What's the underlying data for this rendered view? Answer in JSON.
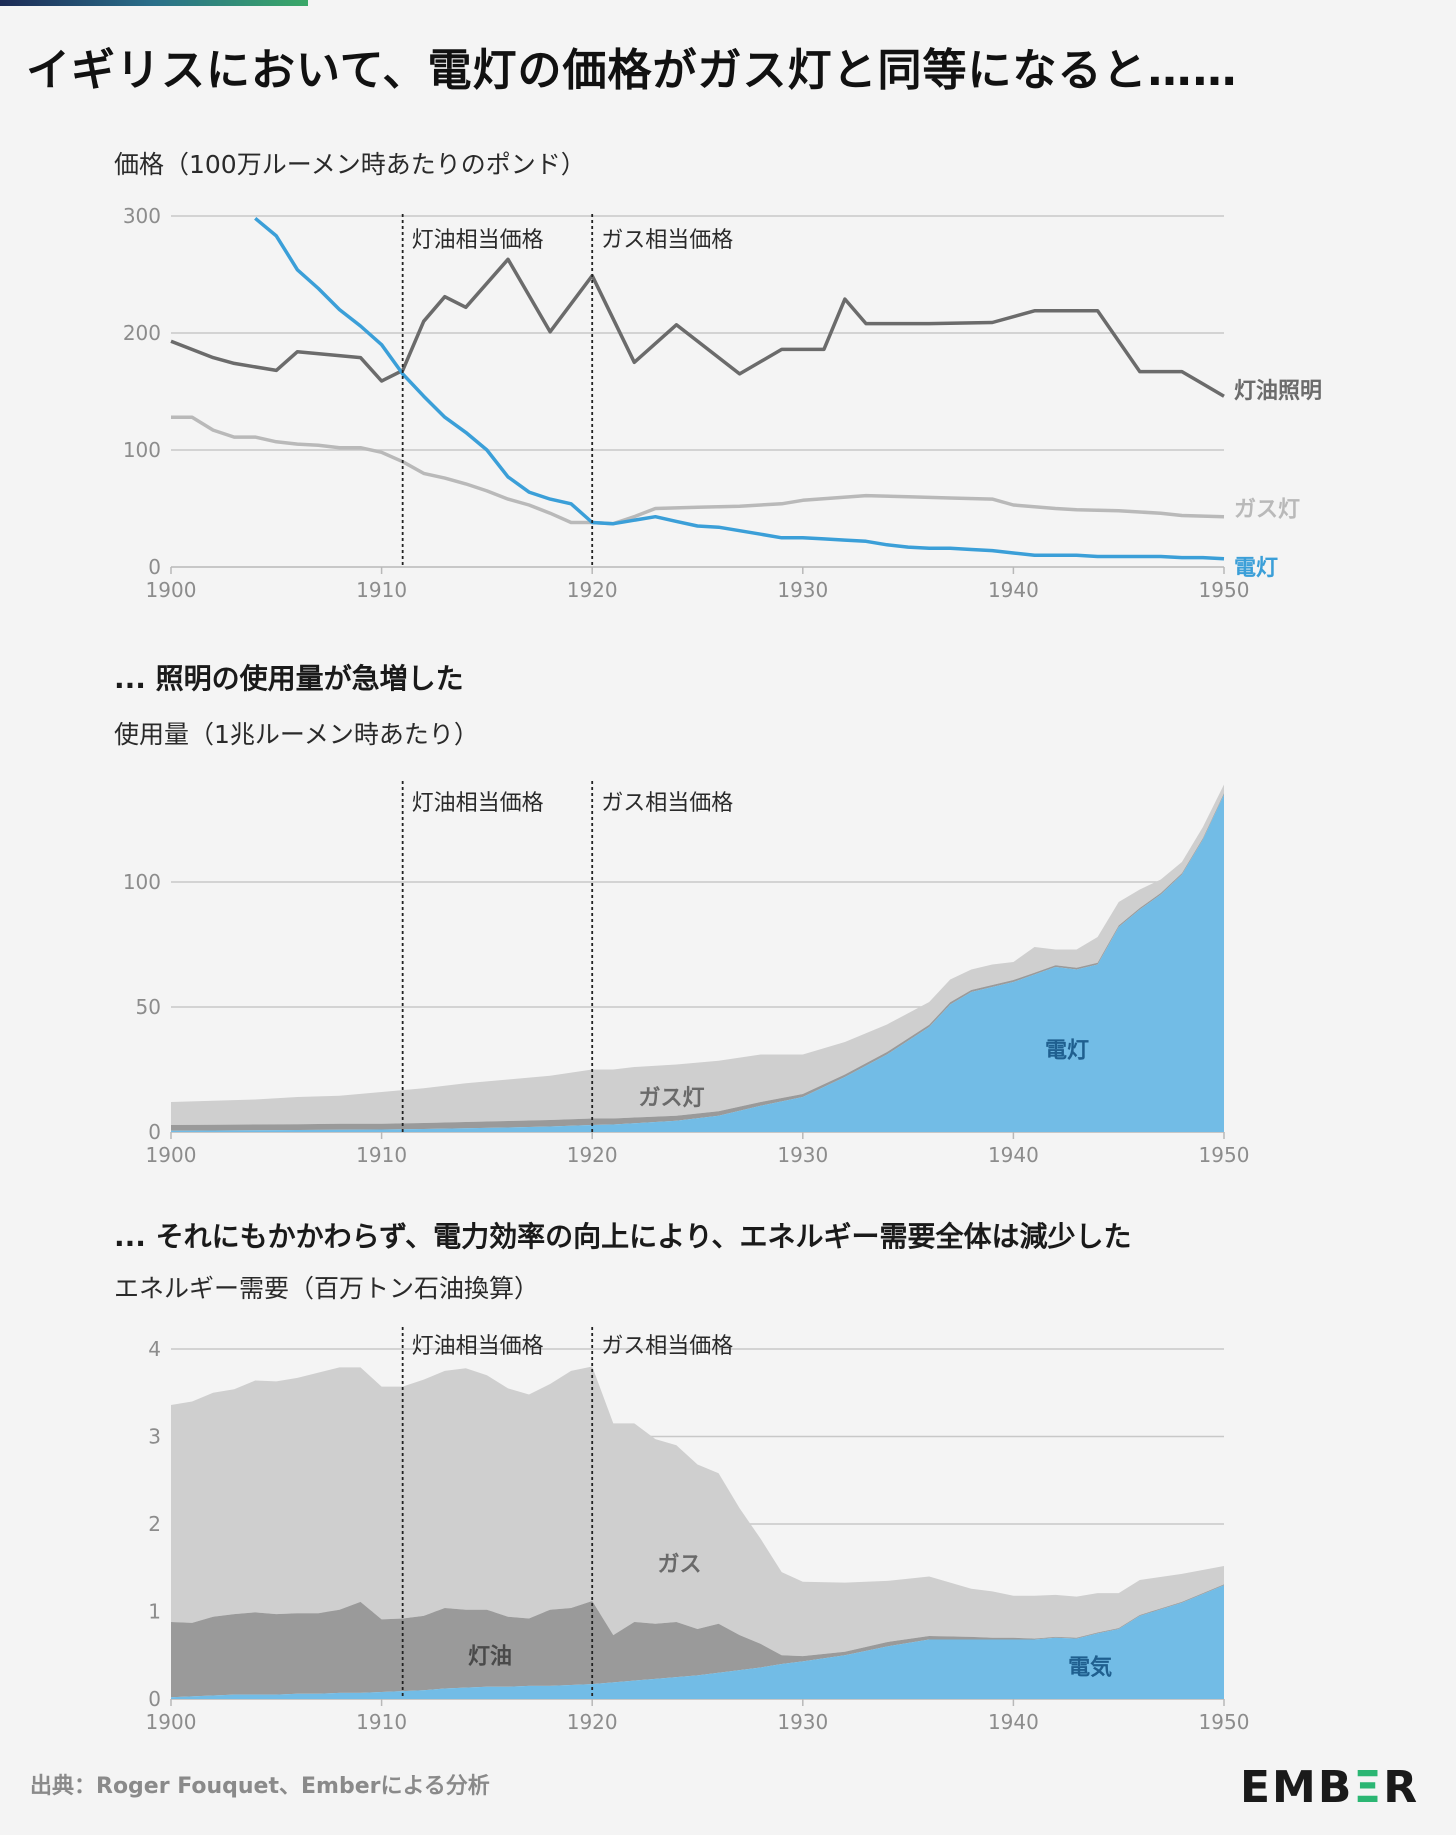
{
  "title": "イギリスにおいて、電灯の価格がガス灯と同等になると……",
  "footer": {
    "source": "出典：Roger Fouquet、Emberによる分析"
  },
  "logo": {
    "text": "EMBER"
  },
  "colors": {
    "electric": "#3b9fd8",
    "electric_area": "#72bce6",
    "kerosene": "#6b6b6b",
    "gas": "#b9b9b9",
    "gas_area": "#cfcfcf",
    "kerosene_area": "#9a9a9a",
    "grid": "#c8c8c8",
    "axis_text": "#8c8c8c"
  },
  "annotations": {
    "kerosene_parity": "灯油相当価格",
    "gas_parity": "ガス相当価格",
    "kerosene_parity_year": 1911,
    "gas_parity_year": 1920
  },
  "chart_data": [
    {
      "type": "line",
      "title": "",
      "ylabel": "価格（100万ルーメン時あたりのポンド）",
      "xlabel": "",
      "xlim": [
        1900,
        1950
      ],
      "ylim": [
        0,
        300
      ],
      "yticks": [
        0,
        100,
        200,
        300
      ],
      "xticks": [
        1900,
        1910,
        1920,
        1930,
        1940,
        1950
      ],
      "series": [
        {
          "name": "灯油照明",
          "key": "kerosene",
          "x": [
            1900,
            1902,
            1903,
            1905,
            1906,
            1909,
            1910,
            1911,
            1912,
            1913,
            1914,
            1916,
            1918,
            1920,
            1922,
            1924,
            1927,
            1929,
            1931,
            1932,
            1933,
            1936,
            1939,
            1941,
            1944,
            1946,
            1948,
            1950
          ],
          "values": [
            193,
            179,
            174,
            168,
            184,
            179,
            159,
            168,
            210,
            231,
            222,
            263,
            201,
            249,
            175,
            207,
            165,
            186,
            186,
            229,
            208,
            208,
            209,
            219,
            219,
            167,
            167,
            146
          ]
        },
        {
          "name": "ガス灯",
          "key": "gas",
          "x": [
            1900,
            1901,
            1902,
            1903,
            1904,
            1905,
            1906,
            1907,
            1908,
            1909,
            1910,
            1911,
            1912,
            1913,
            1914,
            1915,
            1916,
            1917,
            1918,
            1919,
            1920,
            1921,
            1922,
            1923,
            1925,
            1927,
            1928,
            1929,
            1930,
            1933,
            1935,
            1937,
            1939,
            1940,
            1942,
            1943,
            1945,
            1947,
            1948,
            1950
          ],
          "values": [
            128,
            128,
            117,
            111,
            111,
            107,
            105,
            104,
            102,
            102,
            98,
            90,
            80,
            76,
            71,
            65,
            58,
            53,
            46,
            38,
            38,
            37,
            43,
            50,
            51,
            52,
            53,
            54,
            57,
            61,
            60,
            59,
            58,
            53,
            50,
            49,
            48,
            46,
            44,
            43
          ]
        },
        {
          "name": "電灯",
          "key": "electric",
          "x": [
            1904,
            1905,
            1906,
            1907,
            1908,
            1909,
            1910,
            1911,
            1912,
            1913,
            1914,
            1915,
            1916,
            1917,
            1918,
            1919,
            1920,
            1921,
            1922,
            1923,
            1924,
            1925,
            1926,
            1927,
            1928,
            1929,
            1930,
            1931,
            1932,
            1933,
            1934,
            1935,
            1936,
            1937,
            1938,
            1939,
            1940,
            1941,
            1942,
            1943,
            1944,
            1945,
            1946,
            1947,
            1948,
            1949,
            1950
          ],
          "values": [
            298,
            283,
            254,
            238,
            220,
            206,
            190,
            165,
            146,
            128,
            115,
            100,
            77,
            64,
            58,
            54,
            38,
            37,
            40,
            43,
            39,
            35,
            34,
            31,
            28,
            25,
            25,
            24,
            23,
            22,
            19,
            17,
            16,
            16,
            15,
            14,
            12,
            10,
            10,
            10,
            9,
            9,
            9,
            9,
            8,
            8,
            7
          ]
        }
      ],
      "series_labels": {
        "kerosene": "灯油照明",
        "gas": "ガス灯",
        "electric": "電灯"
      }
    },
    {
      "type": "area",
      "title": "... 照明の使用量が急増した",
      "ylabel": "使用量（1兆ルーメン時あたり）",
      "xlabel": "",
      "xlim": [
        1900,
        1950
      ],
      "ylim": [
        0,
        137
      ],
      "yticks": [
        0,
        50,
        100
      ],
      "xticks": [
        1900,
        1910,
        1920,
        1930,
        1940,
        1950
      ],
      "stacked": true,
      "x": [
        1900,
        1902,
        1904,
        1906,
        1908,
        1910,
        1912,
        1914,
        1916,
        1918,
        1920,
        1921,
        1922,
        1924,
        1926,
        1928,
        1930,
        1932,
        1934,
        1936,
        1937,
        1938,
        1939,
        1940,
        1941,
        1942,
        1943,
        1944,
        1945,
        1946,
        1947,
        1948,
        1949,
        1950
      ],
      "series": [
        {
          "name": "電灯",
          "key": "electric",
          "values": [
            0.5,
            0.6,
            0.7,
            0.8,
            0.9,
            1.0,
            1.2,
            1.5,
            1.8,
            2.2,
            2.8,
            3.0,
            3.5,
            4.5,
            6.5,
            10.5,
            14,
            22,
            31,
            42,
            51,
            56,
            58,
            60,
            63,
            66,
            65,
            67,
            82,
            89,
            95,
            103,
            117,
            135
          ]
        },
        {
          "name": "灯油",
          "key": "kerosene",
          "values": [
            2.3,
            2.3,
            2.3,
            2.3,
            2.4,
            2.3,
            2.4,
            2.5,
            2.6,
            2.6,
            2.6,
            2.4,
            2.3,
            2.0,
            1.8,
            1.5,
            1.2,
            1.0,
            1.0,
            0.9,
            0.9,
            0.8,
            0.8,
            0.8,
            0.7,
            0.7,
            0.7,
            0.7,
            0.6,
            0.6,
            0.6,
            0.5,
            0.5,
            0.5
          ]
        },
        {
          "name": "ガス灯",
          "key": "gas",
          "values": [
            9.2,
            9.6,
            10.0,
            10.9,
            11.2,
            12.7,
            13.9,
            15.5,
            16.6,
            17.7,
            19.6,
            19.6,
            20.2,
            20.5,
            20.2,
            19.0,
            15.8,
            13.0,
            11.0,
            9.1,
            9.1,
            8.2,
            8.2,
            7.2,
            10.3,
            6.3,
            7.3,
            10.3,
            9.4,
            7.4,
            5.4,
            4.5,
            4.5,
            3.5
          ]
        }
      ],
      "series_labels": {
        "electric": "電灯",
        "gas": "ガス灯"
      }
    },
    {
      "type": "area",
      "title": "... それにもかかわらず、電力効率の向上により、エネルギー需要全体は減少した",
      "ylabel": "エネルギー需要（百万トン石油換算）",
      "xlabel": "",
      "xlim": [
        1900,
        1950
      ],
      "ylim": [
        0,
        4
      ],
      "yticks": [
        0,
        1,
        2,
        3,
        4
      ],
      "xticks": [
        1900,
        1910,
        1920,
        1930,
        1940,
        1950
      ],
      "stacked": true,
      "x": [
        1900,
        1901,
        1902,
        1903,
        1904,
        1905,
        1906,
        1907,
        1908,
        1909,
        1910,
        1911,
        1912,
        1913,
        1914,
        1915,
        1916,
        1917,
        1918,
        1919,
        1920,
        1921,
        1922,
        1923,
        1924,
        1925,
        1926,
        1927,
        1928,
        1929,
        1930,
        1932,
        1934,
        1936,
        1938,
        1939,
        1940,
        1941,
        1942,
        1943,
        1944,
        1945,
        1946,
        1948,
        1950
      ],
      "series": [
        {
          "name": "電気",
          "key": "electric",
          "values": [
            0.02,
            0.03,
            0.04,
            0.05,
            0.05,
            0.05,
            0.06,
            0.06,
            0.07,
            0.07,
            0.08,
            0.09,
            0.1,
            0.12,
            0.13,
            0.14,
            0.14,
            0.15,
            0.15,
            0.16,
            0.17,
            0.19,
            0.21,
            0.23,
            0.25,
            0.27,
            0.3,
            0.33,
            0.36,
            0.4,
            0.43,
            0.5,
            0.6,
            0.68,
            0.68,
            0.68,
            0.68,
            0.68,
            0.7,
            0.69,
            0.75,
            0.8,
            0.95,
            1.1,
            1.3
          ]
        },
        {
          "name": "灯油",
          "key": "kerosene",
          "values": [
            0.86,
            0.84,
            0.9,
            0.92,
            0.94,
            0.92,
            0.92,
            0.92,
            0.95,
            1.04,
            0.83,
            0.83,
            0.85,
            0.92,
            0.89,
            0.88,
            0.8,
            0.77,
            0.87,
            0.88,
            0.95,
            0.54,
            0.67,
            0.63,
            0.63,
            0.53,
            0.56,
            0.4,
            0.27,
            0.1,
            0.06,
            0.04,
            0.05,
            0.04,
            0.03,
            0.02,
            0.02,
            0.01,
            0.01,
            0.01,
            0.01,
            0.01,
            0.01,
            0.01,
            0.01
          ]
        },
        {
          "name": "ガス",
          "key": "gas",
          "values": [
            2.48,
            2.53,
            2.56,
            2.57,
            2.65,
            2.66,
            2.69,
            2.75,
            2.77,
            2.68,
            2.66,
            2.65,
            2.7,
            2.71,
            2.76,
            2.68,
            2.61,
            2.56,
            2.58,
            2.71,
            2.68,
            2.42,
            2.27,
            2.11,
            2.02,
            1.88,
            1.72,
            1.45,
            1.2,
            0.95,
            0.85,
            0.79,
            0.7,
            0.68,
            0.55,
            0.53,
            0.48,
            0.49,
            0.48,
            0.47,
            0.45,
            0.4,
            0.4,
            0.32,
            0.21
          ]
        }
      ],
      "series_labels": {
        "electric": "電気",
        "kerosene": "灯油",
        "gas": "ガス"
      }
    }
  ]
}
